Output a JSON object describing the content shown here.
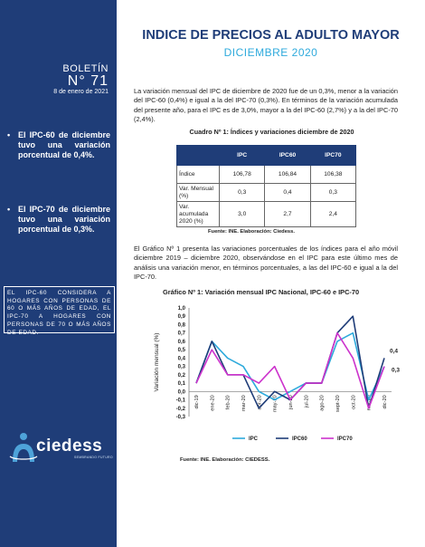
{
  "sidebar": {
    "bulletin_label": "BOLETÍN",
    "bulletin_number": "N° 71",
    "date": "8 de enero de 2021",
    "bullets": [
      "El IPC-60 de diciembre tuvo una variación porcentual de 0,4%.",
      "El IPC-70 de diciembre tuvo una variación porcentual de 0,3%."
    ],
    "note": "EL IPC-60 CONSIDERA A HOGARES CON PERSONAS DE 60 O MÁS AÑOS DE EDAD, EL IPC-70 A HOGARES CON PERSONAS DE 70 O MÁS AÑOS DE EDAD.",
    "logo_text": "ciedess",
    "logo_sub": "SEMBRANDO FUTURO"
  },
  "header": {
    "title": "INDICE DE PRECIOS AL ADULTO MAYOR",
    "subtitle": "DICIEMBRE 2020"
  },
  "paragraphs": [
    "La variación mensual del IPC de diciembre de 2020 fue de un 0,3%, menor a la variación del IPC-60 (0,4%) e igual a la del IPC-70 (0,3%). En términos de la variación acumulada del presente año, para el IPC es de 3,0%, mayor a la del IPC-60 (2,7%) y a la del IPC-70 (2,4%).",
    "El Gráfico Nº 1 presenta las variaciones porcentuales de los índices para el año móvil diciembre 2019 – diciembre 2020, observándose en el IPC para este último mes de análisis una variación menor, en términos porcentuales, a las del IPC-60 e igual a la del IPC-70."
  ],
  "table": {
    "title": "Cuadro Nº 1: Índices y variaciones diciembre de 2020",
    "headers": [
      "",
      "IPC",
      "IPC60",
      "IPC70"
    ],
    "rows": [
      [
        "Índice",
        "106,78",
        "106,84",
        "106,38"
      ],
      [
        "Var. Mensual (%)",
        "0,3",
        "0,4",
        "0,3"
      ],
      [
        "Var. acumulada 2020 (%)",
        "3,0",
        "2,7",
        "2,4"
      ]
    ],
    "source": "Fuente: INE. Elaboración: Ciedess."
  },
  "chart_data": {
    "type": "line",
    "title": "Gráfico Nº 1: Variación mensual IPC Nacional, IPC-60 e IPC-70",
    "ylabel": "Variación mensual (%)",
    "xlabel": "",
    "ylim": [
      -0.3,
      1.0
    ],
    "yticks": [
      "1,0",
      "0,9",
      "0,8",
      "0,7",
      "0,6",
      "0,5",
      "0,4",
      "0,3",
      "0,2",
      "0,1",
      "0,0",
      "-0,1",
      "-0,2",
      "-0,3"
    ],
    "categories": [
      "dic-19",
      "ene-20",
      "feb-20",
      "mar-20",
      "abr-20",
      "may-20",
      "jun-20",
      "jul-20",
      "ago-20",
      "sept-20",
      "oct-20",
      "nov-20",
      "dic-20"
    ],
    "series": [
      {
        "name": "IPC",
        "color": "#2eaadc",
        "values": [
          0.1,
          0.6,
          0.4,
          0.3,
          0.0,
          -0.1,
          0.0,
          0.1,
          0.1,
          0.6,
          0.7,
          -0.1,
          0.3
        ]
      },
      {
        "name": "IPC60",
        "color": "#1f3d78",
        "values": [
          0.1,
          0.6,
          0.2,
          0.2,
          -0.2,
          0.0,
          -0.1,
          0.1,
          0.1,
          0.7,
          0.9,
          -0.2,
          0.4
        ]
      },
      {
        "name": "IPC70",
        "color": "#cc33cc",
        "values": [
          0.1,
          0.5,
          0.2,
          0.2,
          0.1,
          0.3,
          -0.1,
          0.1,
          0.1,
          0.7,
          0.4,
          -0.2,
          0.3
        ]
      }
    ],
    "end_labels": [
      "0,4",
      "0,3"
    ],
    "legend_position": "bottom",
    "grid": false,
    "source": "Fuente: INE. Elaboración: CIEDESS."
  }
}
